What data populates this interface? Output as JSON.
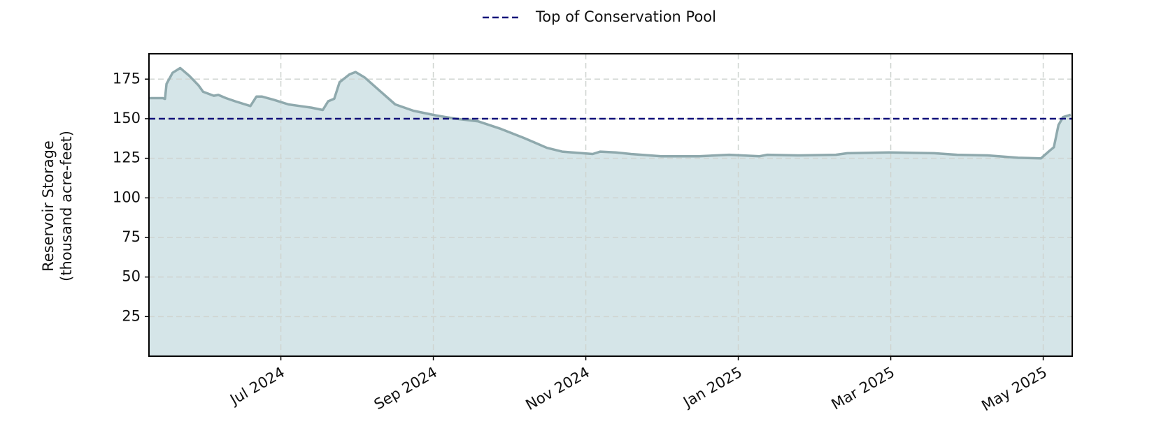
{
  "chart_data": {
    "type": "area",
    "ylabel": [
      "Reservoir Storage",
      "(thousand acre-feet)"
    ],
    "x": [
      4.27,
      4.45,
      4.48,
      4.5,
      4.58,
      4.68,
      4.8,
      4.92,
      4.98,
      5.12,
      5.18,
      5.28,
      5.4,
      5.6,
      5.68,
      5.75,
      5.9,
      6.1,
      6.25,
      6.4,
      6.55,
      6.62,
      6.7,
      6.77,
      6.9,
      6.98,
      7.1,
      7.3,
      7.5,
      7.74,
      8.04,
      8.29,
      8.59,
      8.89,
      9.19,
      9.49,
      9.69,
      10.09,
      10.19,
      10.39,
      10.59,
      10.99,
      11.28,
      11.48,
      11.88,
      12.28,
      12.38,
      12.78,
      13.28,
      13.43,
      13.98,
      14.57,
      14.87,
      15.27,
      15.67,
      15.97,
      16.08,
      16.14,
      16.2,
      16.26,
      16.36
    ],
    "series": [
      {
        "color": "#8fa9ad",
        "fill": "#d5e5e8",
        "values": [
          163,
          163,
          162.5,
          172,
          179,
          182,
          177,
          171,
          167,
          164.5,
          165,
          163,
          161,
          158,
          164,
          164,
          162,
          159,
          158,
          157,
          155.5,
          161,
          162.6,
          173,
          178,
          179.5,
          176,
          167.5,
          159,
          155,
          152,
          150,
          148.3,
          143.5,
          137.8,
          131.6,
          129.2,
          127.7,
          129.2,
          128.7,
          127.7,
          126.3,
          126.3,
          126.3,
          127.2,
          126.3,
          127.2,
          126.8,
          127.2,
          128.2,
          128.7,
          128.2,
          127.2,
          126.8,
          125.3,
          124.9,
          129.6,
          132,
          146,
          151,
          152.5
        ]
      }
    ],
    "reference_lines": [
      {
        "name": "Top of Conservation Pool",
        "value": 150,
        "color": "#10107a"
      }
    ],
    "xlim": [
      4.27,
      16.38
    ],
    "xticks": [
      {
        "value": 6,
        "label": "Jul 2024"
      },
      {
        "value": 8,
        "label": "Sep 2024"
      },
      {
        "value": 10,
        "label": "Nov 2024"
      },
      {
        "value": 12,
        "label": "Jan 2025"
      },
      {
        "value": 14,
        "label": "Mar 2025"
      },
      {
        "value": 16,
        "label": "May 2025"
      }
    ],
    "ylim": [
      0,
      191
    ],
    "yticks": [
      25,
      50,
      75,
      100,
      125,
      150,
      175
    ],
    "grid": true,
    "legend": "top-center"
  }
}
